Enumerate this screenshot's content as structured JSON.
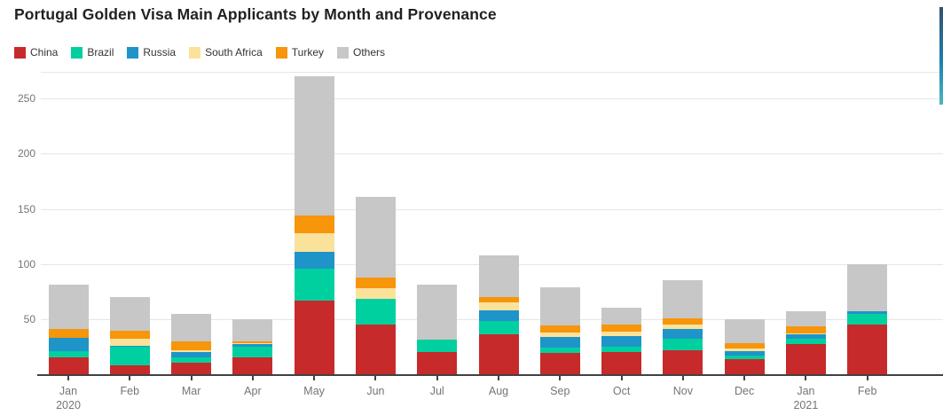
{
  "title": "Portugal Golden Visa Main Applicants by Month and Provenance",
  "chart_data": {
    "type": "bar",
    "stacked": true,
    "title": "Portugal Golden Visa Main Applicants by Month and Provenance",
    "categories": [
      "Jan",
      "Feb",
      "Mar",
      "Apr",
      "May",
      "Jun",
      "Jul",
      "Aug",
      "Sep",
      "Oct",
      "Nov",
      "Dec",
      "Jan",
      "Feb"
    ],
    "category_year_labels": {
      "0": "2020",
      "12": "2021"
    },
    "series": [
      {
        "name": "China",
        "color": "#c62a2a",
        "values": [
          15,
          8,
          10,
          15,
          67,
          45,
          20,
          36,
          19,
          20,
          22,
          14,
          27,
          45
        ]
      },
      {
        "name": "Brazil",
        "color": "#00d0a0",
        "values": [
          6,
          17,
          5,
          10,
          29,
          23,
          11,
          12,
          5,
          5,
          10,
          3,
          5,
          10
        ]
      },
      {
        "name": "Russia",
        "color": "#1e94c8",
        "values": [
          12,
          1,
          5,
          2,
          15,
          0,
          0,
          10,
          10,
          10,
          9,
          4,
          4,
          2
        ]
      },
      {
        "name": "South Africa",
        "color": "#fbe29b",
        "values": [
          0,
          6,
          2,
          1,
          17,
          10,
          0,
          7,
          4,
          4,
          4,
          2,
          1,
          0
        ]
      },
      {
        "name": "Turkey",
        "color": "#f7950b",
        "values": [
          8,
          7,
          8,
          2,
          16,
          10,
          0,
          5,
          6,
          6,
          6,
          5,
          6,
          0
        ]
      },
      {
        "name": "Others",
        "color": "#c7c7c7",
        "values": [
          40,
          31,
          25,
          20,
          126,
          73,
          50,
          38,
          35,
          15,
          34,
          22,
          14,
          43
        ]
      }
    ],
    "totals": [
      81,
      70,
      55,
      50,
      270,
      161,
      81,
      108,
      79,
      60,
      85,
      50,
      57,
      100
    ],
    "y_ticks": [
      50,
      100,
      150,
      200,
      250
    ],
    "ylim": [
      0,
      275
    ],
    "grid": true,
    "legend_position": "top-left"
  },
  "colors": {
    "axis_line": "#424242",
    "grid_line": "#e6e6e6",
    "tick_label": "#757575",
    "title_text": "#212121",
    "scroll_strip_top": "#35506f",
    "scroll_strip_mid": "#1d7fae",
    "scroll_strip_bottom": "#49b7c1"
  }
}
